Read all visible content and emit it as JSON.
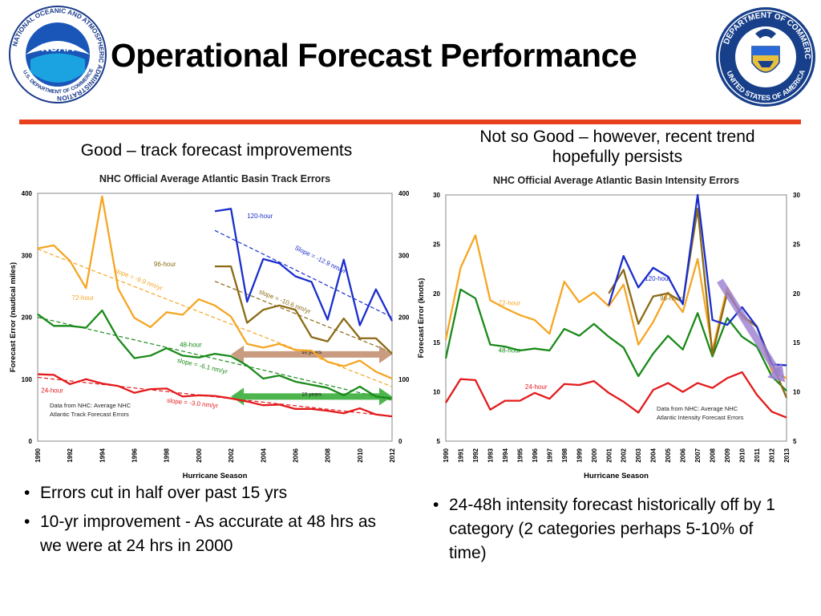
{
  "slide": {
    "title": "Operational Forecast Performance",
    "accent_color": "#e8401c",
    "left_heading": "Good – track forecast improvements",
    "right_heading": "Not so Good – however, recent trend hopefully persists",
    "left_bullets": [
      "Errors cut in half over past 15 yrs",
      "10-yr improvement - As accurate at 48 hrs as we were at 24 hrs in 2000"
    ],
    "right_bullets": [
      "24-48h intensity forecast historically off by 1 category (2 categories perhaps 5-10% of time)"
    ],
    "logos": {
      "noaa": {
        "ring_text": "NATIONAL OCEANIC AND ATMOSPHERIC ADMINISTRATION",
        "bottom_text": "U.S. DEPARTMENT OF COMMERCE",
        "name": "NOAA",
        "icon": "noaa-seal-icon"
      },
      "commerce": {
        "ring_text": "DEPARTMENT OF COMMERCE",
        "bottom_text": "UNITED STATES OF AMERICA",
        "icon": "commerce-seal-icon"
      }
    }
  },
  "chart_data": [
    {
      "type": "line",
      "title": "NHC Official Average Atlantic Basin Track Errors",
      "xlabel": "Hurricane Season",
      "ylabel": "Forecast Error  (nautical miles)",
      "ylim": [
        0,
        400
      ],
      "xlim": [
        1990,
        2012
      ],
      "yticks": [
        0,
        100,
        200,
        300,
        400
      ],
      "xticks": [
        1990,
        1992,
        1994,
        1996,
        1998,
        2000,
        2002,
        2004,
        2006,
        2008,
        2010,
        2012
      ],
      "source_note": [
        "Data from NHC:  Average NHC",
        "Atlantic Track Forecast Errors"
      ],
      "series": [
        {
          "name": "24-hour",
          "color": "#e31a1c",
          "x": [
            1990,
            1991,
            1992,
            1993,
            1994,
            1995,
            1996,
            1997,
            1998,
            1999,
            2000,
            2001,
            2002,
            2003,
            2004,
            2005,
            2006,
            2007,
            2008,
            2009,
            2010,
            2011,
            2012
          ],
          "values": [
            108,
            107,
            92,
            100,
            93,
            89,
            78,
            84,
            85,
            72,
            74,
            73,
            69,
            64,
            58,
            59,
            52,
            52,
            49,
            45,
            53,
            43,
            40
          ]
        },
        {
          "name": "48-hour",
          "color": "#1a8a1a",
          "x": [
            1990,
            1991,
            1992,
            1993,
            1994,
            1995,
            1996,
            1997,
            1998,
            1999,
            2000,
            2001,
            2002,
            2003,
            2004,
            2005,
            2006,
            2007,
            2008,
            2009,
            2010,
            2011,
            2012
          ],
          "values": [
            205,
            186,
            186,
            183,
            211,
            165,
            134,
            138,
            150,
            138,
            135,
            141,
            137,
            122,
            101,
            106,
            96,
            91,
            86,
            74,
            88,
            72,
            69
          ]
        },
        {
          "name": "72-hour",
          "color": "#f5a623",
          "x": [
            1990,
            1991,
            1992,
            1993,
            1994,
            1995,
            1996,
            1997,
            1998,
            1999,
            2000,
            2001,
            2002,
            2003,
            2004,
            2005,
            2006,
            2007,
            2008,
            2009,
            2010,
            2011,
            2012
          ],
          "values": [
            311,
            316,
            291,
            247,
            395,
            246,
            199,
            184,
            208,
            204,
            229,
            219,
            201,
            157,
            151,
            157,
            147,
            146,
            128,
            121,
            130,
            112,
            101
          ]
        },
        {
          "name": "96-hour",
          "color": "#8a6a14",
          "x": [
            2001,
            2002,
            2003,
            2004,
            2005,
            2006,
            2007,
            2008,
            2009,
            2010,
            2011,
            2012
          ],
          "values": [
            282,
            282,
            191,
            212,
            219,
            212,
            168,
            161,
            198,
            166,
            166,
            141
          ]
        },
        {
          "name": "120-hour",
          "color": "#1a2ecc",
          "x": [
            2001,
            2002,
            2003,
            2004,
            2005,
            2006,
            2007,
            2008,
            2009,
            2010,
            2011,
            2012
          ],
          "values": [
            371,
            375,
            225,
            294,
            287,
            266,
            257,
            196,
            293,
            187,
            245,
            194
          ]
        }
      ],
      "trend_lines": [
        {
          "label": "slope = -3.0 nm/yr",
          "color": "#e31a1c",
          "x": [
            1990,
            2012
          ],
          "values": [
            103,
            40
          ]
        },
        {
          "label": "slope = -6.1 nm/yr",
          "color": "#1a8a1a",
          "x": [
            1990,
            2012
          ],
          "values": [
            200,
            66
          ]
        },
        {
          "label": "slope = -9.9 nm/yr",
          "color": "#f5a623",
          "x": [
            1990,
            2012
          ],
          "values": [
            310,
            88
          ]
        },
        {
          "label": "slope = -10.6 nm/yr",
          "color": "#8a6a14",
          "x": [
            2001,
            2012
          ],
          "values": [
            258,
            143
          ]
        },
        {
          "label": "Slope = -12.9 nm/yr",
          "color": "#1a2ecc",
          "x": [
            2001,
            2012
          ],
          "values": [
            340,
            200
          ]
        }
      ],
      "arrows": [
        {
          "label": "10 years",
          "color": "#c08a6a",
          "x": [
            2002,
            2012
          ],
          "y": 140
        },
        {
          "label": "10 years",
          "color": "#2ea82e",
          "x": [
            2002,
            2012
          ],
          "y": 72
        }
      ]
    },
    {
      "type": "line",
      "title": "NHC Official Average Atlantic Basin Intensity Errors",
      "xlabel": "Hurricane Season",
      "ylabel": "Forecast Error  (knots)",
      "ylim": [
        5,
        30
      ],
      "xlim": [
        1990,
        2013
      ],
      "yticks": [
        5,
        10,
        15,
        20,
        25,
        30
      ],
      "xticks": [
        1990,
        1991,
        1992,
        1993,
        1994,
        1995,
        1996,
        1997,
        1998,
        1999,
        2000,
        2001,
        2002,
        2003,
        2004,
        2005,
        2006,
        2007,
        2008,
        2009,
        2010,
        2011,
        2012,
        2013
      ],
      "source_note": [
        "Data from NHC: Average NHC",
        "Atlantic Intensity Forecast Errors"
      ],
      "series": [
        {
          "name": "24-hour",
          "color": "#e31a1c",
          "x": [
            1990,
            1991,
            1992,
            1993,
            1994,
            1995,
            1996,
            1997,
            1998,
            1999,
            2000,
            2001,
            2002,
            2003,
            2004,
            2005,
            2006,
            2007,
            2008,
            2009,
            2010,
            2011,
            2012,
            2013
          ],
          "values": [
            8.9,
            11.3,
            11.2,
            8.2,
            9.1,
            9.1,
            9.9,
            9.3,
            10.8,
            10.7,
            11.1,
            9.9,
            9.0,
            7.9,
            10.2,
            10.9,
            10.0,
            10.9,
            10.4,
            11.4,
            12.0,
            9.7,
            8.0,
            7.4
          ]
        },
        {
          "name": "48-hour",
          "color": "#1a8a1a",
          "x": [
            1990,
            1991,
            1992,
            1993,
            1994,
            1995,
            1996,
            1997,
            1998,
            1999,
            2000,
            2001,
            2002,
            2003,
            2004,
            2005,
            2006,
            2007,
            2008,
            2009,
            2010,
            2011,
            2012,
            2013
          ],
          "values": [
            13.4,
            20.4,
            19.5,
            14.8,
            14.6,
            14.2,
            14.4,
            14.2,
            16.4,
            15.7,
            16.9,
            15.6,
            14.5,
            11.6,
            13.9,
            15.7,
            14.3,
            18.0,
            13.6,
            17.5,
            15.6,
            14.6,
            11.6,
            10.1
          ]
        },
        {
          "name": "72-hour",
          "color": "#f5a623",
          "x": [
            1990,
            1991,
            1992,
            1993,
            1994,
            1995,
            1996,
            1997,
            1998,
            1999,
            2000,
            2001,
            2002,
            2003,
            2004,
            2005,
            2006,
            2007,
            2008,
            2009,
            2010,
            2011,
            2012,
            2013
          ],
          "values": [
            15.3,
            22.6,
            25.9,
            19.3,
            18.5,
            17.8,
            17.3,
            15.9,
            21.2,
            19.1,
            20.1,
            18.7,
            20.9,
            14.8,
            17.1,
            20.1,
            18.1,
            23.5,
            14.2,
            20.6,
            17.5,
            16.7,
            12.1,
            11.4
          ]
        },
        {
          "name": "96-hour",
          "color": "#8a6a14",
          "x": [
            2001,
            2002,
            2003,
            2004,
            2005,
            2006,
            2007,
            2008,
            2009,
            2010,
            2011,
            2012,
            2013
          ],
          "values": [
            20.0,
            22.4,
            16.9,
            19.7,
            20.0,
            19.1,
            28.6,
            13.8,
            20.1,
            17.8,
            16.6,
            13.0,
            9.4
          ]
        },
        {
          "name": "120-hour",
          "color": "#1a2ecc",
          "x": [
            2001,
            2002,
            2003,
            2004,
            2005,
            2006,
            2007,
            2008,
            2009,
            2010,
            2011,
            2012,
            2013
          ],
          "values": [
            18.8,
            23.8,
            20.6,
            22.6,
            21.7,
            18.9,
            30.0,
            17.3,
            16.8,
            18.6,
            16.6,
            12.8,
            12.7
          ]
        }
      ],
      "trend_arrow": {
        "color": "#9b7fd1",
        "x": [
          2008.5,
          2012.9
        ],
        "values": [
          21.3,
          11.0
        ]
      }
    }
  ]
}
